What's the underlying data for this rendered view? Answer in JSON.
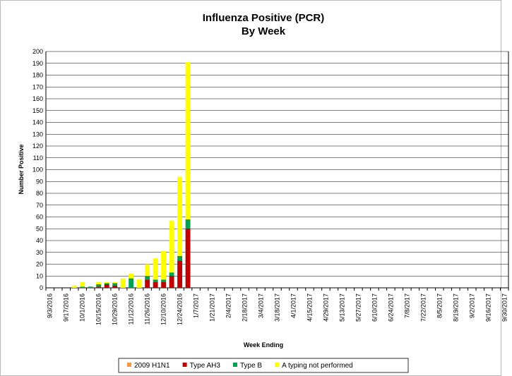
{
  "chart_data": {
    "type": "bar",
    "stacked": true,
    "title": "Influenza Positive (PCR)",
    "subtitle": "By Week",
    "x_label": "Week Ending",
    "y_label": "Number Positive",
    "categories": [
      "9/3/2016",
      null,
      "9/17/2016",
      null,
      "10/1/2016",
      null,
      "10/15/2016",
      null,
      "10/29/2016",
      null,
      "11/12/2016",
      null,
      "11/26/2016",
      null,
      "12/10/2016",
      null,
      "12/24/2016",
      null,
      "1/7/2017",
      null,
      "1/21/2017",
      null,
      "2/4/2017",
      null,
      "2/18/2017",
      null,
      "3/4/2017",
      null,
      "3/18/2017",
      null,
      "4/1/2017",
      null,
      "4/15/2017",
      null,
      "4/29/2017",
      null,
      "5/13/2017",
      null,
      "5/27/2017",
      null,
      "6/10/2017",
      null,
      "6/24/2017",
      null,
      "7/8/2017",
      null,
      "7/22/2017",
      null,
      "8/5/2017",
      null,
      "8/19/2017",
      null,
      "9/2/2017",
      null,
      "9/16/2017",
      null,
      "9/30/2017"
    ],
    "series": [
      {
        "name": "2009 H1N1",
        "color": "#f79646",
        "values": [
          0,
          0,
          0,
          0,
          0,
          0,
          0,
          0,
          0,
          0,
          0,
          0,
          0,
          0,
          0,
          0,
          0,
          0,
          null,
          null,
          null,
          null,
          null,
          null,
          null,
          null,
          null,
          null,
          null,
          null,
          null,
          null,
          null,
          null,
          null,
          null,
          null,
          null,
          null,
          null,
          null,
          null,
          null,
          null,
          null,
          null,
          null,
          null,
          null,
          null,
          null,
          null,
          null,
          null,
          null,
          null,
          null
        ]
      },
      {
        "name": "Type AH3",
        "color": "#c00000",
        "values": [
          0,
          0,
          0,
          0,
          0,
          0,
          1,
          3,
          2,
          0,
          0,
          0,
          7,
          5,
          5,
          10,
          23,
          50,
          null,
          null,
          null,
          null,
          null,
          null,
          null,
          null,
          null,
          null,
          null,
          null,
          null,
          null,
          null,
          null,
          null,
          null,
          null,
          null,
          null,
          null,
          null,
          null,
          null,
          null,
          null,
          null,
          null,
          null,
          null,
          null,
          null,
          null,
          null,
          null,
          null,
          null,
          null
        ]
      },
      {
        "name": "Type B",
        "color": "#00a050",
        "values": [
          0,
          0,
          0,
          0,
          1,
          1,
          2,
          1,
          2,
          0,
          8,
          0,
          3,
          2,
          2,
          3,
          4,
          8,
          null,
          null,
          null,
          null,
          null,
          null,
          null,
          null,
          null,
          null,
          null,
          null,
          null,
          null,
          null,
          null,
          null,
          null,
          null,
          null,
          null,
          null,
          null,
          null,
          null,
          null,
          null,
          null,
          null,
          null,
          null,
          null,
          null,
          null,
          null,
          null,
          null,
          null,
          null
        ]
      },
      {
        "name": "A typing not performed",
        "color": "#ffff00",
        "values": [
          0,
          0,
          0,
          2,
          4,
          0,
          2,
          1,
          1,
          8,
          4,
          7,
          10,
          18,
          24,
          44,
          67,
          133,
          null,
          null,
          null,
          null,
          null,
          null,
          null,
          null,
          null,
          null,
          null,
          null,
          null,
          null,
          null,
          null,
          null,
          null,
          null,
          null,
          null,
          null,
          null,
          null,
          null,
          null,
          null,
          null,
          null,
          null,
          null,
          null,
          null,
          null,
          null,
          null,
          null,
          null,
          null
        ]
      }
    ],
    "ylim": [
      0,
      200
    ],
    "yticks": [
      0,
      10,
      20,
      30,
      40,
      50,
      60,
      70,
      80,
      90,
      100,
      110,
      120,
      130,
      140,
      150,
      160,
      170,
      180,
      190,
      200
    ],
    "grid": true,
    "legend": "bottom"
  }
}
